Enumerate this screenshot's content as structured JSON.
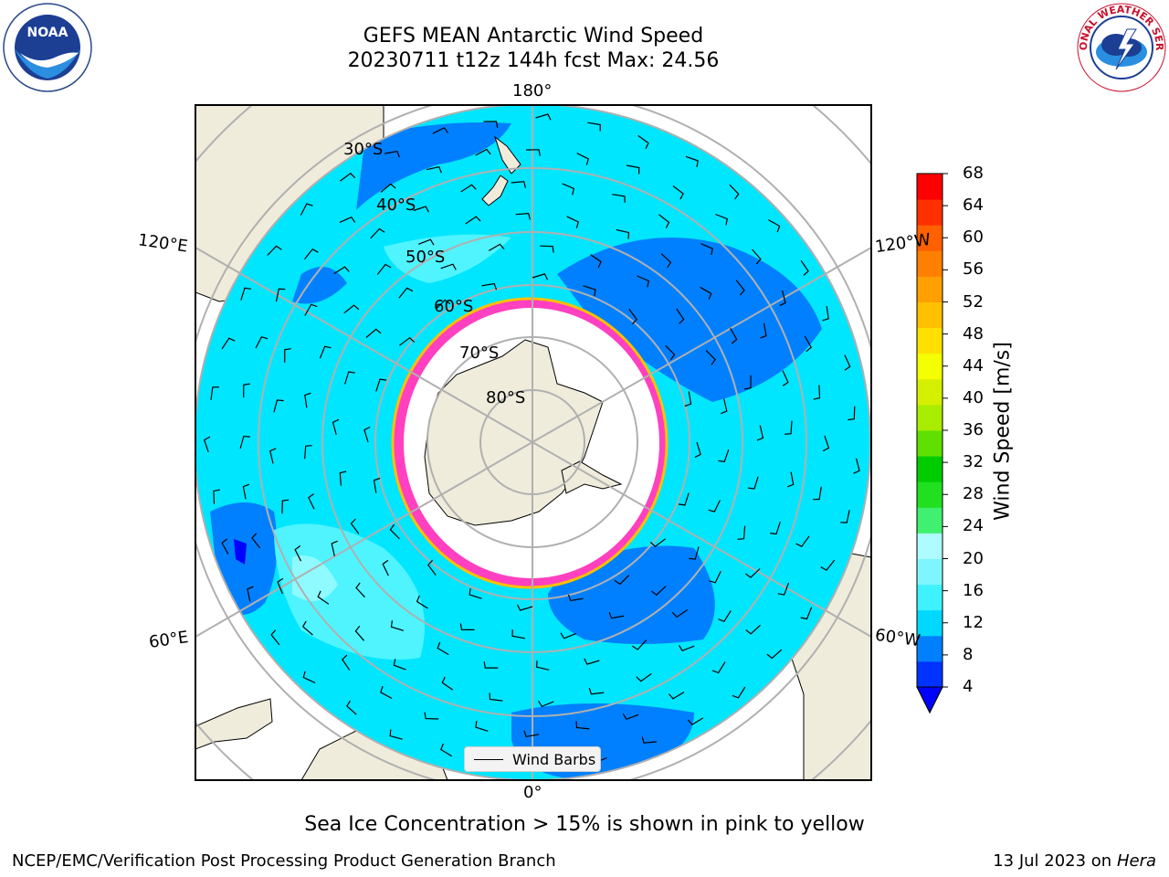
{
  "title": {
    "line1": "GEFS MEAN Antarctic Wind Speed",
    "line2": "20230711 t12z 144h fcst   Max: 24.56"
  },
  "logos": {
    "left": "NOAA",
    "right": "NATIONAL WEATHER SERVICE"
  },
  "map": {
    "projection": "south-polar-stereographic",
    "lon_labels": [
      "180°",
      "120°E",
      "120°W",
      "60°E",
      "60°W",
      "0°"
    ],
    "lat_labels": [
      "30°S",
      "40°S",
      "50°S",
      "60°S",
      "70°S",
      "80°S"
    ],
    "legend_label": "Wind Barbs"
  },
  "colorbar": {
    "label": "Wind Speed [m/s]",
    "ticks": [
      "4",
      "8",
      "12",
      "16",
      "20",
      "24",
      "28",
      "32",
      "36",
      "40",
      "44",
      "48",
      "52",
      "56",
      "60",
      "64",
      "68"
    ],
    "colors": [
      "#0033ff",
      "#0080ff",
      "#00d8ff",
      "#3ff2ff",
      "#7ff6ff",
      "#aefcff",
      "#40f070",
      "#20e020",
      "#00cc00",
      "#60e000",
      "#a8ec00",
      "#d4f000",
      "#f4ff00",
      "#ffe000",
      "#ffc000",
      "#ffa000",
      "#ff8000",
      "#ff6000",
      "#ff3000",
      "#ff0000"
    ],
    "underflow_color": "#0000ff"
  },
  "caption": "Sea Ice Concentration > 15% is shown in pink to yellow",
  "footer": {
    "left": "NCEP/EMC/Verification Post Processing Product Generation Branch",
    "right_prefix": "13 Jul 2023 on ",
    "right_machine": "Hera"
  }
}
